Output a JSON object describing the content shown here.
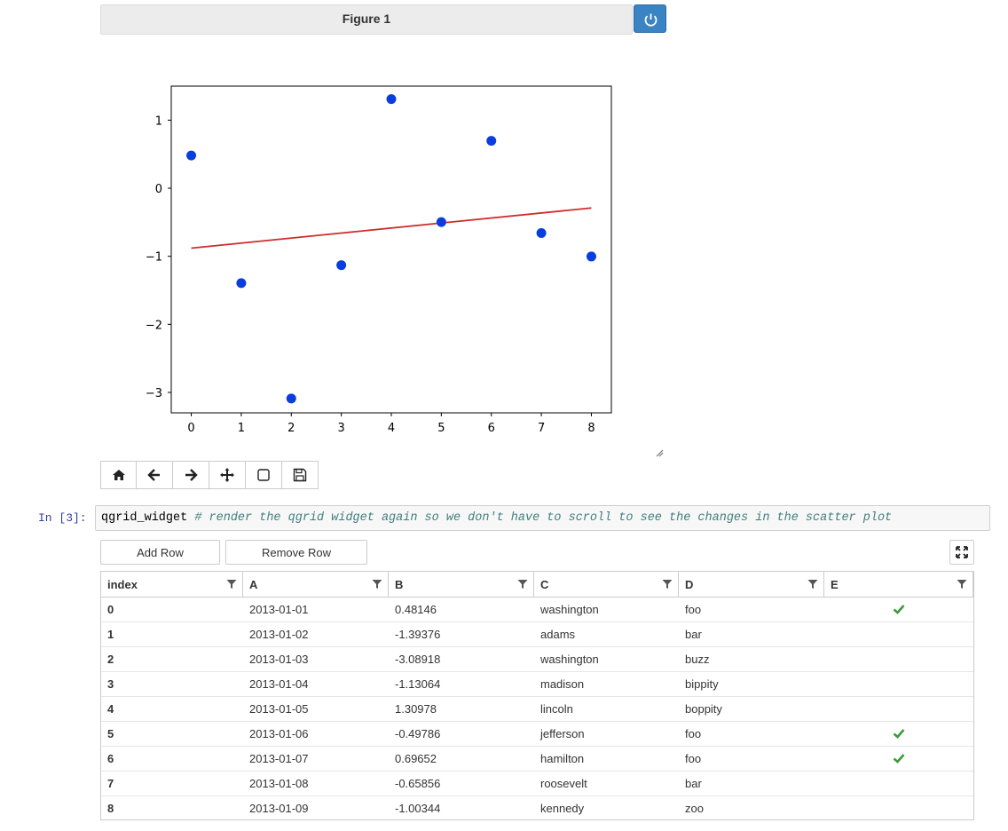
{
  "figure": {
    "title": "Figure 1"
  },
  "chart_data": {
    "type": "scatter",
    "title": "",
    "xlabel": "",
    "ylabel": "",
    "x": [
      0,
      1,
      2,
      3,
      4,
      5,
      6,
      7,
      8
    ],
    "y": [
      0.48146,
      -1.39376,
      -3.08918,
      -1.13064,
      1.30978,
      -0.49786,
      0.69652,
      -0.65856,
      -1.00344
    ],
    "fit_line": {
      "x": [
        0,
        8
      ],
      "y": [
        -0.88,
        -0.29
      ]
    },
    "xlim": [
      -0.4,
      8.4
    ],
    "ylim": [
      -3.3,
      1.5
    ],
    "xticks": [
      0,
      1,
      2,
      3,
      4,
      5,
      6,
      7,
      8
    ],
    "yticks": [
      1,
      0,
      -1,
      -2,
      -3
    ],
    "ytick_labels": [
      "1",
      "0",
      "−1",
      "−2",
      "−3"
    ],
    "point_color": "#0a3de0",
    "line_color": "#d12a2a",
    "grid": false
  },
  "toolbar": {
    "items": [
      "home-icon",
      "back-arrow-icon",
      "forward-arrow-icon",
      "pan-move-icon",
      "zoom-rect-icon",
      "save-icon"
    ]
  },
  "cell": {
    "prompt": "In [3]:",
    "code": "qgrid_widget",
    "comment": " # render the qgrid widget again so we don't have to scroll to see the changes in the scatter plot"
  },
  "buttons": {
    "add_row": "Add Row",
    "remove_row": "Remove Row"
  },
  "grid": {
    "columns": [
      "index",
      "A",
      "B",
      "C",
      "D",
      "E"
    ],
    "rows": [
      {
        "index": "0",
        "A": "2013-01-01",
        "B": "0.48146",
        "C": "washington",
        "D": "foo",
        "E": true
      },
      {
        "index": "1",
        "A": "2013-01-02",
        "B": "-1.39376",
        "C": "adams",
        "D": "bar",
        "E": false
      },
      {
        "index": "2",
        "A": "2013-01-03",
        "B": "-3.08918",
        "C": "washington",
        "D": "buzz",
        "E": false
      },
      {
        "index": "3",
        "A": "2013-01-04",
        "B": "-1.13064",
        "C": "madison",
        "D": "bippity",
        "E": false
      },
      {
        "index": "4",
        "A": "2013-01-05",
        "B": "1.30978",
        "C": "lincoln",
        "D": "boppity",
        "E": false
      },
      {
        "index": "5",
        "A": "2013-01-06",
        "B": "-0.49786",
        "C": "jefferson",
        "D": "foo",
        "E": true
      },
      {
        "index": "6",
        "A": "2013-01-07",
        "B": "0.69652",
        "C": "hamilton",
        "D": "foo",
        "E": true
      },
      {
        "index": "7",
        "A": "2013-01-08",
        "B": "-0.65856",
        "C": "roosevelt",
        "D": "bar",
        "E": false
      },
      {
        "index": "8",
        "A": "2013-01-09",
        "B": "-1.00344",
        "C": "kennedy",
        "D": "zoo",
        "E": false
      }
    ]
  }
}
